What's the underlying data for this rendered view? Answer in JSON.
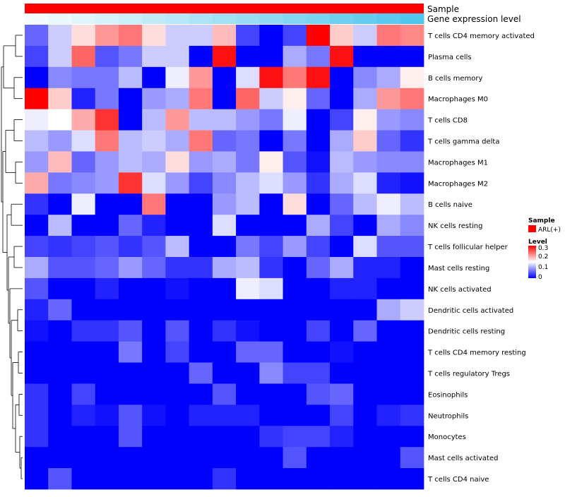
{
  "chart_data": {
    "type": "heatmap",
    "annotations": [
      {
        "name": "Sample",
        "color": "#ff0000"
      },
      {
        "name": "Gene expression level",
        "gradient": [
          "#f4fbfe",
          "#50c5ee"
        ]
      }
    ],
    "rows": [
      "T cells CD4 memory activated",
      "Plasma cells",
      "B cells memory",
      "Macrophages M0",
      "T cells CD8",
      "T cells gamma delta",
      "Macrophages M1",
      "Macrophages M2",
      "B cells naive",
      "NK cells resting",
      "T cells follicular helper",
      "Mast cells resting",
      "NK cells activated",
      "Dendritic cells activated",
      "Dendritic cells resting",
      "T cells CD4 memory resting",
      "T cells regulatory  Tregs",
      "Eosinophils",
      "Neutrophils",
      "Monocytes",
      "Mast cells activated",
      "T cells CD4 naive"
    ],
    "values": [
      [
        0.06,
        0.12,
        0.17,
        0.21,
        0.23,
        0.17,
        0.12,
        0.12,
        0.19,
        0.04,
        0.0,
        0.04,
        0.3,
        0.18,
        0.12,
        0.23,
        0.22
      ],
      [
        0.04,
        0.12,
        0.24,
        0.05,
        0.07,
        0.12,
        0.12,
        0.0,
        0.29,
        0.0,
        0.0,
        0.1,
        0.07,
        0.29,
        0.0,
        0.0,
        0.0
      ],
      [
        0.0,
        0.08,
        0.07,
        0.07,
        0.11,
        0.0,
        0.14,
        0.21,
        0.0,
        0.13,
        0.29,
        0.23,
        0.29,
        0.0,
        0.08,
        0.1,
        0.16
      ],
      [
        0.3,
        0.18,
        0.02,
        0.07,
        0.0,
        0.09,
        0.1,
        0.23,
        0.0,
        0.24,
        0.12,
        0.16,
        0.06,
        0.0,
        0.1,
        0.21,
        0.23
      ],
      [
        0.14,
        0.15,
        0.2,
        0.27,
        0.0,
        0.11,
        0.21,
        0.11,
        0.11,
        0.09,
        0.07,
        0.14,
        0.0,
        0.04,
        0.16,
        0.09,
        0.08
      ],
      [
        0.11,
        0.09,
        0.13,
        0.23,
        0.11,
        0.12,
        0.1,
        0.23,
        0.06,
        0.07,
        0.0,
        0.07,
        0.0,
        0.1,
        0.18,
        0.06,
        0.03
      ],
      [
        0.09,
        0.19,
        0.06,
        0.09,
        0.11,
        0.1,
        0.17,
        0.09,
        0.1,
        0.07,
        0.16,
        0.05,
        0.01,
        0.11,
        0.09,
        0.08,
        0.08
      ],
      [
        0.2,
        0.07,
        0.08,
        0.09,
        0.27,
        0.13,
        0.09,
        0.04,
        0.08,
        0.11,
        0.13,
        0.09,
        0.03,
        0.1,
        0.13,
        0.02,
        0.01
      ],
      [
        0.03,
        0.0,
        0.14,
        0.0,
        0.0,
        0.23,
        0.0,
        0.0,
        0.09,
        0.11,
        0.0,
        0.17,
        0.0,
        0.06,
        0.11,
        0.14,
        0.11
      ],
      [
        0.0,
        0.11,
        0.0,
        0.0,
        0.06,
        0.02,
        0.0,
        0.0,
        0.13,
        0.0,
        0.0,
        0.0,
        0.1,
        0.04,
        0.0,
        0.1,
        0.08
      ],
      [
        0.04,
        0.03,
        0.04,
        0.05,
        0.03,
        0.05,
        0.11,
        0.0,
        0.0,
        0.07,
        0.04,
        0.09,
        0.04,
        0.0,
        0.13,
        0.05,
        0.05
      ],
      [
        0.1,
        0.05,
        0.05,
        0.06,
        0.09,
        0.06,
        0.03,
        0.03,
        0.1,
        0.11,
        0.03,
        0.0,
        0.06,
        0.1,
        0.02,
        0.02,
        0.0
      ],
      [
        0.05,
        0.0,
        0.0,
        0.02,
        0.0,
        0.0,
        0.01,
        0.0,
        0.0,
        0.14,
        0.13,
        0.0,
        0.0,
        0.02,
        0.02,
        0.0,
        0.0
      ],
      [
        0.02,
        0.06,
        0.0,
        0.0,
        0.0,
        0.0,
        0.0,
        0.0,
        0.0,
        0.0,
        0.0,
        0.0,
        0.0,
        0.0,
        0.0,
        0.1,
        0.12
      ],
      [
        0.01,
        0.0,
        0.03,
        0.03,
        0.05,
        0.0,
        0.05,
        0.0,
        0.03,
        0.01,
        0.0,
        0.0,
        0.04,
        0.0,
        0.06,
        0.0,
        0.0
      ],
      [
        0.0,
        0.0,
        0.0,
        0.0,
        0.07,
        0.0,
        0.04,
        0.0,
        0.0,
        0.06,
        0.06,
        0.0,
        0.0,
        0.01,
        0.0,
        0.0,
        0.0
      ],
      [
        0.0,
        0.0,
        0.0,
        0.0,
        0.0,
        0.0,
        0.0,
        0.06,
        0.0,
        0.0,
        0.08,
        0.04,
        0.04,
        0.0,
        0.0,
        0.0,
        0.0
      ],
      [
        0.03,
        0.0,
        0.04,
        0.0,
        0.0,
        0.0,
        0.0,
        0.0,
        0.05,
        0.0,
        0.0,
        0.0,
        0.05,
        0.06,
        0.0,
        0.0,
        0.0
      ],
      [
        0.03,
        0.0,
        0.02,
        0.01,
        0.05,
        0.01,
        0.0,
        0.02,
        0.02,
        0.02,
        0.0,
        0.0,
        0.0,
        0.04,
        0.0,
        0.02,
        0.03
      ],
      [
        0.03,
        0.0,
        0.0,
        0.0,
        0.05,
        0.0,
        0.0,
        0.0,
        0.0,
        0.0,
        0.03,
        0.04,
        0.04,
        0.02,
        0.0,
        0.0,
        0.0
      ],
      [
        0.0,
        0.0,
        0.0,
        0.0,
        0.0,
        0.0,
        0.0,
        0.0,
        0.0,
        0.0,
        0.0,
        0.05,
        0.0,
        0.0,
        0.0,
        0.0,
        0.05
      ],
      [
        0.0,
        0.05,
        0.0,
        0.0,
        0.0,
        0.0,
        0.0,
        0.0,
        0.03,
        0.0,
        0.0,
        0.0,
        0.0,
        0.0,
        0.0,
        0.0,
        0.0
      ]
    ],
    "legend": {
      "sample_title": "Sample",
      "sample_entry": "ARL(+)",
      "level_title": "Level",
      "ticks": [
        "0.3",
        "0.2",
        "0.1",
        "0"
      ],
      "scale": {
        "min": 0,
        "max": 0.3,
        "low_color": "#0000ff",
        "mid_color": "#ffffff",
        "high_color": "#ff0000"
      }
    }
  }
}
